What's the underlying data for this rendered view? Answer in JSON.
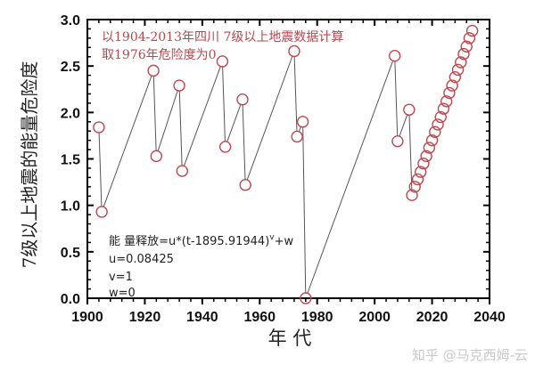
{
  "chart_data": {
    "type": "scatter",
    "title": "",
    "xlabel": "年 代",
    "ylabel": "7级以上地震的能量危险度",
    "xlim": [
      1900,
      2040
    ],
    "ylim": [
      0.0,
      3.0
    ],
    "x_ticks": [
      "1900",
      "1920",
      "1940",
      "1960",
      "1980",
      "2000",
      "2020",
      "2040"
    ],
    "y_ticks": [
      "0.0",
      "0.5",
      "1.0",
      "1.5",
      "2.0",
      "2.5",
      "3.0"
    ],
    "grid": false,
    "legend": null,
    "marker": "open-circle",
    "marker_color": "#c0474f",
    "line_color": "#555555",
    "series": [
      {
        "name": "能量危险度",
        "x": [
          1904,
          1905,
          1923,
          1924,
          1932,
          1933,
          1947,
          1948,
          1954,
          1955,
          1972,
          1973,
          1975,
          1976,
          2007,
          2008,
          2012,
          2013,
          2014,
          2015,
          2016,
          2017,
          2018,
          2019,
          2020,
          2021,
          2022,
          2023,
          2024,
          2025,
          2026,
          2027,
          2028,
          2029,
          2030,
          2031,
          2032,
          2033,
          2034
        ],
        "y": [
          1.84,
          0.93,
          2.45,
          1.53,
          2.29,
          1.37,
          2.55,
          1.63,
          2.14,
          1.22,
          2.66,
          1.74,
          1.9,
          0.0,
          2.61,
          1.69,
          2.03,
          1.11,
          1.2,
          1.28,
          1.36,
          1.45,
          1.53,
          1.62,
          1.7,
          1.79,
          1.87,
          1.95,
          2.04,
          2.12,
          2.21,
          2.29,
          2.38,
          2.46,
          2.54,
          2.63,
          2.71,
          2.8,
          2.88
        ],
        "connected_until_index": 17
      }
    ],
    "annotations": [
      "以1904-2013年四川 7级以上地震数据计算",
      "取1976年危险度为0",
      "能 量释放=u*(t-1895.91944)^v+w",
      "u=0.08425",
      "v=1",
      "w=0"
    ]
  },
  "text": {
    "annot_line1": "以1904-2013年四川 7级以上地震数据计算",
    "annot_line2": "取1976年危险度为0",
    "formula_main": "能 量释放=u*(t-1895.91944)",
    "formula_sup": "v",
    "formula_tail": "+w",
    "param_u": "u=0.08425",
    "param_v": "v=1",
    "param_w": "w=0",
    "xlabel": "年 代",
    "ylabel": "7级以上地震的能量危险度",
    "watermark": "知乎 @马克西姆-云"
  }
}
